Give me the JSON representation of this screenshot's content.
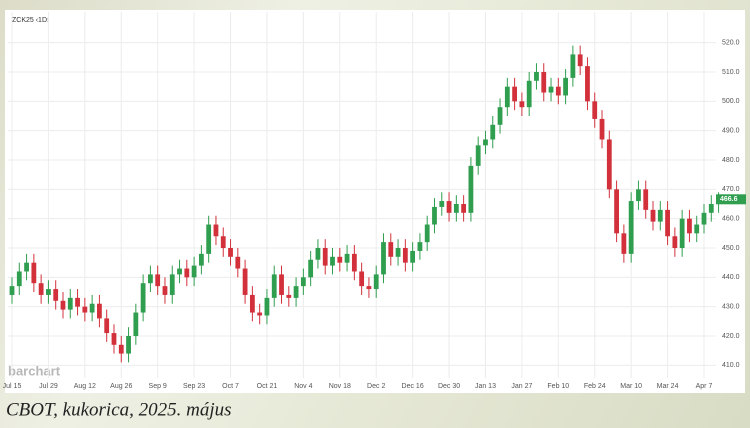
{
  "caption": "CBOT, kukorica, 2025. május",
  "chart_data": {
    "type": "candlestick",
    "symbol": "ZCK25 ‹1D›",
    "watermark": "barchart",
    "up_color": "#2f9e4f",
    "down_color": "#d2313c",
    "grid": true,
    "ylim": [
      405,
      525
    ],
    "yticks": [
      {
        "value": 410,
        "label": "410.0"
      },
      {
        "value": 420,
        "label": "420.0"
      },
      {
        "value": 430,
        "label": "430.0"
      },
      {
        "value": 440,
        "label": "440.0"
      },
      {
        "value": 450,
        "label": "450.0"
      },
      {
        "value": 460,
        "label": "460.0"
      },
      {
        "value": 470,
        "label": "470.0"
      },
      {
        "value": 480,
        "label": "480.0"
      },
      {
        "value": 490,
        "label": "490.0"
      },
      {
        "value": 500,
        "label": "500.0"
      },
      {
        "value": 510,
        "label": "510.0"
      },
      {
        "value": 520,
        "label": "520.0"
      }
    ],
    "categories": [
      "Jul 15",
      null,
      null,
      null,
      null,
      "Jul 29",
      null,
      null,
      null,
      null,
      "Aug 12",
      null,
      null,
      null,
      null,
      "Aug 26",
      null,
      null,
      null,
      null,
      "Sep 9",
      null,
      null,
      null,
      null,
      "Sep 23",
      null,
      null,
      null,
      null,
      "Oct 7",
      null,
      null,
      null,
      null,
      "Oct 21",
      null,
      null,
      null,
      null,
      "Nov 4",
      null,
      null,
      null,
      null,
      "Nov 18",
      null,
      null,
      null,
      null,
      "Dec 2",
      null,
      null,
      null,
      null,
      "Dec 16",
      null,
      null,
      null,
      null,
      "Dec 30",
      null,
      null,
      null,
      null,
      "Jan 13",
      null,
      null,
      null,
      null,
      "Jan 27",
      null,
      null,
      null,
      null,
      "Feb 10",
      null,
      null,
      null,
      null,
      "Feb 24",
      null,
      null,
      null,
      null,
      "Mar 10",
      null,
      null,
      null,
      null,
      "Mar 24",
      null,
      null,
      null,
      null,
      "Apr 7",
      null,
      null
    ],
    "open": [
      434,
      437,
      442,
      445,
      438,
      434,
      436,
      432,
      429,
      433,
      430,
      428,
      431,
      426,
      421,
      417,
      414,
      420,
      428,
      438,
      441,
      437,
      434,
      441,
      443,
      440,
      444,
      448,
      458,
      454,
      450,
      447,
      443,
      434,
      428,
      427,
      433,
      441,
      434,
      433,
      437,
      440,
      446,
      450,
      444,
      447,
      445,
      448,
      442,
      437,
      436,
      441,
      452,
      447,
      450,
      445,
      449,
      452,
      458,
      464,
      466,
      462,
      465,
      462,
      478,
      485,
      487,
      492,
      498,
      505,
      500,
      498,
      507,
      510,
      503,
      505,
      502,
      508,
      516,
      512,
      500,
      494,
      487,
      470,
      455,
      448,
      466,
      470,
      463,
      459,
      463,
      454,
      450,
      460,
      455,
      458,
      462,
      465
    ],
    "high": [
      440,
      445,
      448,
      448,
      441,
      439,
      439,
      435,
      436,
      436,
      433,
      434,
      434,
      429,
      424,
      420,
      423,
      431,
      441,
      444,
      444,
      440,
      444,
      446,
      446,
      447,
      451,
      461,
      461,
      457,
      453,
      450,
      446,
      437,
      431,
      436,
      444,
      444,
      437,
      440,
      443,
      449,
      453,
      453,
      450,
      450,
      451,
      451,
      445,
      440,
      444,
      455,
      455,
      453,
      453,
      452,
      455,
      461,
      467,
      469,
      469,
      468,
      468,
      481,
      488,
      490,
      495,
      501,
      508,
      508,
      503,
      510,
      513,
      513,
      508,
      508,
      511,
      519,
      519,
      515,
      503,
      497,
      490,
      473,
      458,
      469,
      473,
      473,
      466,
      466,
      466,
      457,
      463,
      463,
      461,
      465,
      468,
      469
    ],
    "low": [
      431,
      434,
      439,
      435,
      431,
      431,
      429,
      426,
      426,
      427,
      425,
      425,
      423,
      418,
      414,
      411,
      411,
      417,
      425,
      435,
      434,
      431,
      431,
      438,
      437,
      437,
      441,
      445,
      451,
      447,
      444,
      440,
      431,
      425,
      424,
      424,
      430,
      431,
      430,
      430,
      434,
      437,
      443,
      441,
      441,
      442,
      442,
      439,
      434,
      433,
      433,
      438,
      444,
      444,
      442,
      442,
      446,
      449,
      455,
      461,
      459,
      459,
      459,
      459,
      475,
      482,
      484,
      489,
      495,
      497,
      495,
      495,
      504,
      500,
      500,
      499,
      499,
      505,
      509,
      497,
      491,
      484,
      467,
      452,
      445,
      445,
      463,
      460,
      456,
      456,
      451,
      447,
      447,
      452,
      452,
      455,
      459,
      462
    ],
    "close": [
      437,
      442,
      445,
      438,
      434,
      436,
      432,
      429,
      433,
      430,
      428,
      431,
      426,
      421,
      417,
      414,
      420,
      428,
      438,
      441,
      437,
      434,
      441,
      443,
      440,
      444,
      448,
      458,
      454,
      450,
      447,
      443,
      434,
      428,
      427,
      433,
      441,
      434,
      433,
      437,
      440,
      446,
      450,
      444,
      447,
      445,
      448,
      442,
      437,
      436,
      441,
      452,
      447,
      450,
      445,
      449,
      452,
      458,
      464,
      466,
      462,
      465,
      462,
      478,
      485,
      487,
      492,
      498,
      505,
      500,
      498,
      507,
      510,
      503,
      505,
      502,
      508,
      516,
      512,
      500,
      494,
      487,
      470,
      455,
      448,
      466,
      470,
      463,
      459,
      463,
      454,
      450,
      460,
      455,
      458,
      462,
      465,
      466.6
    ]
  }
}
